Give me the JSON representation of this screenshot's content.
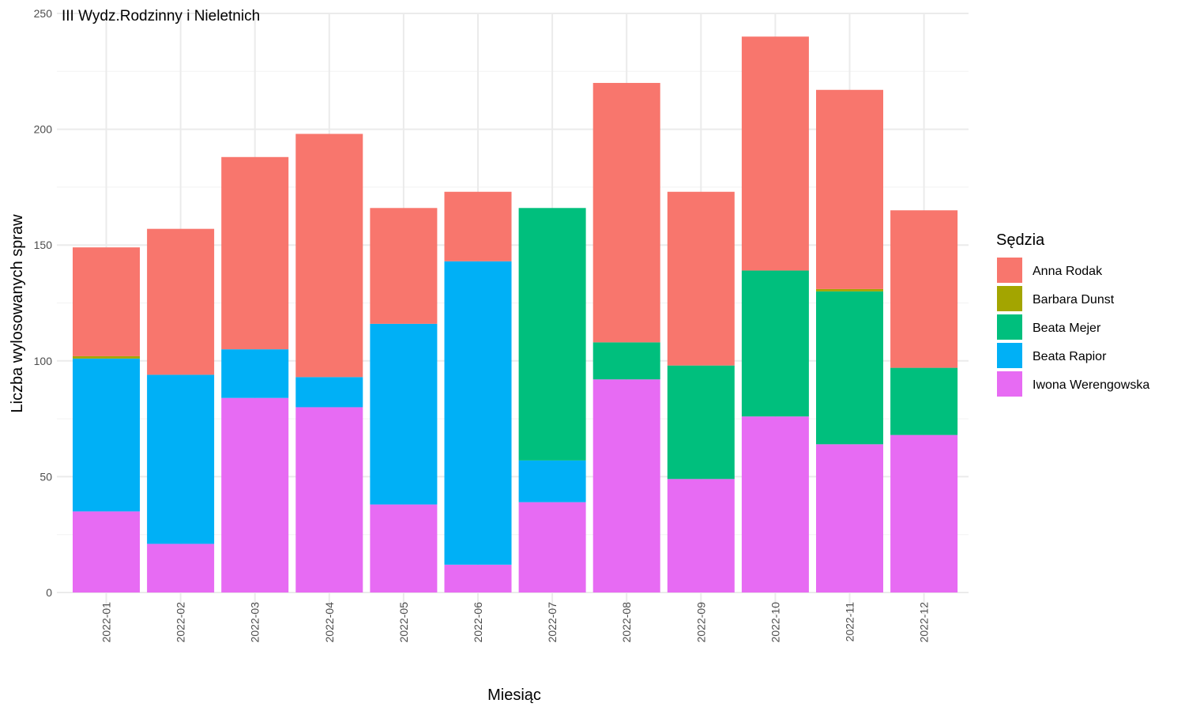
{
  "chart_data": {
    "type": "bar",
    "stacked": true,
    "title": "III Wydz.Rodzinny i Nieletnich",
    "xlabel": "Miesiąc",
    "ylabel": "Liczba wylosowanych spraw",
    "ylim": [
      0,
      250
    ],
    "yticks": [
      0,
      50,
      100,
      150,
      200,
      250
    ],
    "grid": true,
    "legend_title": "Sędzia",
    "legend_position": "right",
    "categories": [
      "2022-01",
      "2022-02",
      "2022-03",
      "2022-04",
      "2022-05",
      "2022-06",
      "2022-07",
      "2022-08",
      "2022-09",
      "2022-10",
      "2022-11",
      "2022-12"
    ],
    "stack_order": "bottom-to-top",
    "series": [
      {
        "name": "Iwona Werengowska",
        "color": "#E76BF3",
        "values": [
          35,
          21,
          84,
          80,
          38,
          12,
          39,
          92,
          49,
          76,
          64,
          68
        ]
      },
      {
        "name": "Beata Rapior",
        "color": "#00B0F6",
        "values": [
          66,
          73,
          21,
          13,
          78,
          131,
          18,
          0,
          0,
          0,
          0,
          0
        ]
      },
      {
        "name": "Beata Mejer",
        "color": "#00BF7D",
        "values": [
          0,
          0,
          0,
          0,
          0,
          0,
          109,
          16,
          49,
          63,
          66,
          29
        ]
      },
      {
        "name": "Barbara Dunst",
        "color": "#A3A500",
        "values": [
          1,
          0,
          0,
          0,
          0,
          0,
          0,
          0,
          0,
          0,
          1,
          0
        ]
      },
      {
        "name": "Anna Rodak",
        "color": "#F8766D",
        "values": [
          47,
          63,
          83,
          105,
          50,
          30,
          0,
          112,
          75,
          101,
          86,
          68
        ]
      }
    ],
    "legend_order": [
      "Anna Rodak",
      "Barbara Dunst",
      "Beata Mejer",
      "Beata Rapior",
      "Iwona Werengowska"
    ]
  }
}
